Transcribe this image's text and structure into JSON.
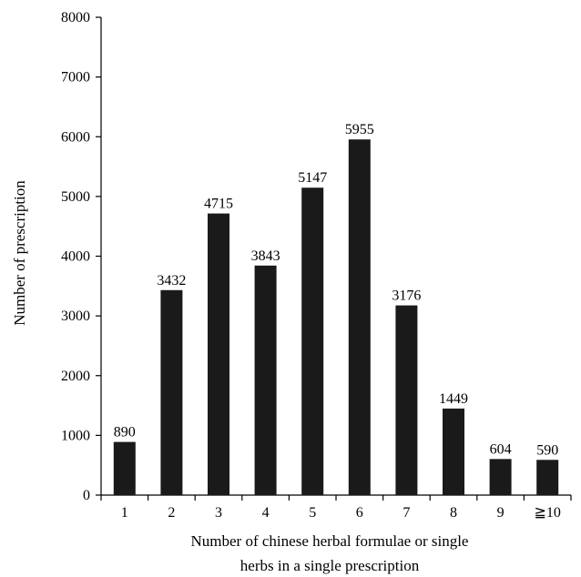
{
  "chart_data": {
    "type": "bar",
    "categories": [
      "1",
      "2",
      "3",
      "4",
      "5",
      "6",
      "7",
      "8",
      "9",
      "≧10"
    ],
    "values": [
      890,
      3432,
      4715,
      3843,
      5147,
      5955,
      3176,
      1449,
      604,
      590
    ],
    "data_labels": [
      "890",
      "3432",
      "4715",
      "3843",
      "5147",
      "5955",
      "3176",
      "1449",
      "604",
      "590"
    ],
    "title": "",
    "xlabel_lines": [
      "Number of chinese herbal formulae or single",
      "herbs in a single prescription"
    ],
    "ylabel": "Number of prescription",
    "ylim": [
      0,
      8000
    ],
    "yticks": [
      "0",
      "1000",
      "2000",
      "3000",
      "4000",
      "5000",
      "6000",
      "7000",
      "8000"
    ],
    "grid": false,
    "legend": "none",
    "colors": {
      "bar": "#1a1a1a",
      "axis": "#000000"
    }
  }
}
